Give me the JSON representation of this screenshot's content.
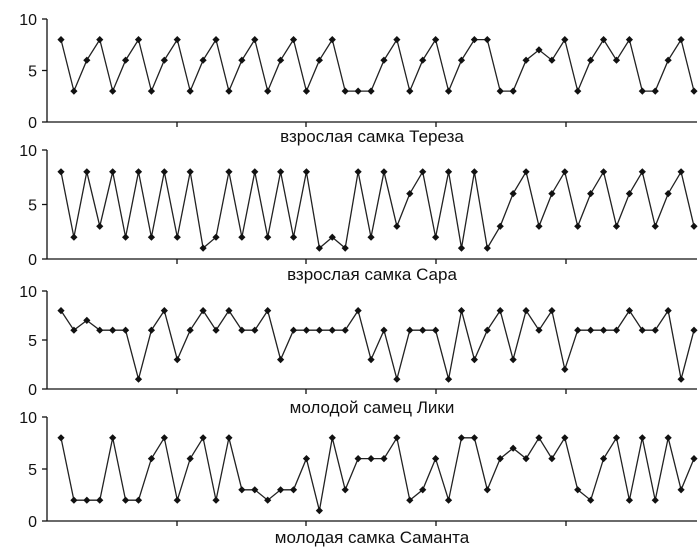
{
  "chart_data": [
    {
      "type": "line",
      "xlabel": "взрослая самка Тереза",
      "ylim": [
        0,
        10
      ],
      "yticks": [
        0,
        5,
        10
      ],
      "values": [
        8,
        3,
        6,
        8,
        3,
        6,
        8,
        3,
        6,
        8,
        3,
        6,
        8,
        3,
        6,
        8,
        3,
        6,
        8,
        3,
        6,
        8,
        3,
        3,
        3,
        6,
        8,
        3,
        6,
        8,
        3,
        6,
        8,
        8,
        3,
        3,
        6,
        7,
        6,
        8,
        3,
        6,
        8,
        6,
        8,
        3,
        3,
        6,
        8,
        3
      ]
    },
    {
      "type": "line",
      "xlabel": "взрослая самка Сара",
      "ylim": [
        0,
        10
      ],
      "yticks": [
        0,
        5,
        10
      ],
      "values": [
        8,
        2,
        8,
        3,
        8,
        2,
        8,
        2,
        8,
        2,
        8,
        1,
        2,
        8,
        2,
        8,
        2,
        8,
        2,
        8,
        1,
        2,
        1,
        8,
        2,
        8,
        3,
        6,
        8,
        2,
        8,
        1,
        8,
        1,
        3,
        6,
        8,
        3,
        6,
        8,
        3,
        6,
        8,
        3,
        6,
        8,
        3,
        6,
        8,
        3
      ]
    },
    {
      "type": "line",
      "xlabel": "молодой самец Лики",
      "ylim": [
        0,
        10
      ],
      "yticks": [
        0,
        5,
        10
      ],
      "values": [
        8,
        6,
        7,
        6,
        6,
        6,
        1,
        6,
        8,
        3,
        6,
        8,
        6,
        8,
        6,
        6,
        8,
        3,
        6,
        6,
        6,
        6,
        6,
        8,
        3,
        6,
        1,
        6,
        6,
        6,
        1,
        8,
        3,
        6,
        8,
        3,
        8,
        6,
        8,
        2,
        6,
        6,
        6,
        6,
        8,
        6,
        6,
        8,
        1,
        6
      ]
    },
    {
      "type": "line",
      "xlabel": "молодая самка Саманта",
      "ylim": [
        0,
        10
      ],
      "yticks": [
        0,
        5,
        10
      ],
      "values": [
        8,
        2,
        2,
        2,
        8,
        2,
        2,
        6,
        8,
        2,
        6,
        8,
        2,
        8,
        3,
        3,
        2,
        3,
        3,
        6,
        1,
        8,
        3,
        6,
        6,
        6,
        8,
        2,
        3,
        6,
        2,
        8,
        8,
        3,
        6,
        7,
        6,
        8,
        6,
        8,
        3,
        2,
        6,
        8,
        2,
        8,
        2,
        8,
        3,
        6
      ]
    }
  ]
}
